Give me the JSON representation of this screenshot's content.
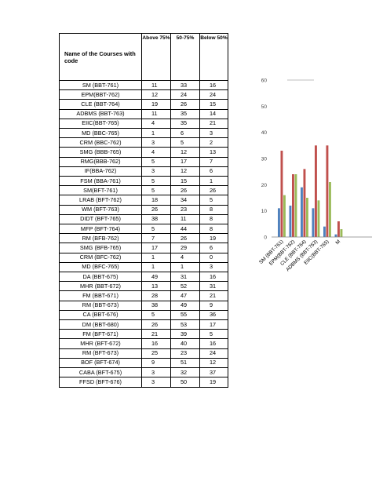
{
  "table": {
    "headers": {
      "name": "Name of the Courses with code",
      "above": "Above 75%",
      "mid": "50-75%",
      "below": "Below 50%"
    },
    "rows": [
      {
        "course": "SM (BBT-761)",
        "above": "11",
        "mid": "33",
        "below": "16"
      },
      {
        "course": "EPM(BBT-762)",
        "above": "12",
        "mid": "24",
        "below": "24"
      },
      {
        "course": "CLE (BBT-764)",
        "above": "19",
        "mid": "26",
        "below": "15"
      },
      {
        "course": "ADBMS (BBT-763)",
        "above": "11",
        "mid": "35",
        "below": "14"
      },
      {
        "course": "EIIC(BBT-765)",
        "above": "4",
        "mid": "35",
        "below": "21"
      },
      {
        "course": "MD (BBC-765)",
        "above": "1",
        "mid": "6",
        "below": "3"
      },
      {
        "course": "CRM (BBC-762)",
        "above": "3",
        "mid": "5",
        "below": "2"
      },
      {
        "course": "SMG (BBB-765)",
        "above": "4",
        "mid": "12",
        "below": "13"
      },
      {
        "course": "RMG(BBB-762)",
        "above": "5",
        "mid": "17",
        "below": "7"
      },
      {
        "course": "IF(BBA-762)",
        "above": "3",
        "mid": "12",
        "below": "6"
      },
      {
        "course": "FSM (BBA-761)",
        "above": "5",
        "mid": "15",
        "below": "1"
      },
      {
        "course": "SM(BFT-761)",
        "above": "5",
        "mid": "26",
        "below": "26"
      },
      {
        "course": "LRAB (BFT-762)",
        "above": "18",
        "mid": "34",
        "below": "5"
      },
      {
        "course": "WM (BFT-763)",
        "above": "26",
        "mid": "23",
        "below": "8"
      },
      {
        "course": "DIDT (BFT-765)",
        "above": "38",
        "mid": "11",
        "below": "8"
      },
      {
        "course": "MFP (BFT-764)",
        "above": "5",
        "mid": "44",
        "below": "8"
      },
      {
        "course": "RM (BFB-762)",
        "above": "7",
        "mid": "26",
        "below": "19"
      },
      {
        "course": "SMG (BFB-765)",
        "above": "17",
        "mid": "29",
        "below": "6"
      },
      {
        "course": "CRM (BFC-762)",
        "above": "1",
        "mid": "4",
        "below": "0"
      },
      {
        "course": "MD (BFC-765)",
        "above": "1",
        "mid": "1",
        "below": "3"
      },
      {
        "course": "DA (BBT-675)",
        "above": "49",
        "mid": "31",
        "below": "16"
      },
      {
        "course": "MHR (BBT-672)",
        "above": "13",
        "mid": "52",
        "below": "31"
      },
      {
        "course": "FM (BBT-671)",
        "above": "28",
        "mid": "47",
        "below": "21"
      },
      {
        "course": "RM (BBT-673)",
        "above": "38",
        "mid": "49",
        "below": "9"
      },
      {
        "course": "CA (BBT-676)",
        "above": "5",
        "mid": "55",
        "below": "36"
      },
      {
        "course": "DM (BBT-680)",
        "above": "26",
        "mid": "53",
        "below": "17"
      },
      {
        "course": "FM (BFT-671)",
        "above": "21",
        "mid": "39",
        "below": "5"
      },
      {
        "course": "MHR (BFT-672)",
        "above": "16",
        "mid": "40",
        "below": "16"
      },
      {
        "course": "RM (BFT-673)",
        "above": "25",
        "mid": "23",
        "below": "24"
      },
      {
        "course": "BOF (BFT-674)",
        "above": "9",
        "mid": "51",
        "below": "12"
      },
      {
        "course": "CABA (BFT-675)",
        "above": "3",
        "mid": "32",
        "below": "37"
      },
      {
        "course": "FFSD (BFT-676)",
        "above": "3",
        "mid": "50",
        "below": "19"
      }
    ]
  },
  "chart_data": {
    "type": "bar",
    "title": "",
    "xlabel": "",
    "ylabel": "",
    "ylim": [
      0,
      60
    ],
    "yticks": [
      "0",
      "10",
      "20",
      "30",
      "40",
      "50",
      "60"
    ],
    "categories": [
      "SM (BBT-761)",
      "EPM(BBT-762)",
      "CLE (BBT-764)",
      "ADBMS (BBT-763)",
      "EIIC(BBT-765)",
      "M"
    ],
    "series": [
      {
        "values": [
          11,
          12,
          19,
          11,
          4,
          1
        ],
        "color": "#4f81bd"
      },
      {
        "values": [
          33,
          24,
          26,
          35,
          35,
          6
        ],
        "color": "#c0504d"
      },
      {
        "values": [
          16,
          24,
          15,
          14,
          21,
          3
        ],
        "color": "#9bbb59"
      }
    ],
    "grid": false,
    "legend": "none",
    "note": "chart is cropped at the right edge of the page"
  }
}
